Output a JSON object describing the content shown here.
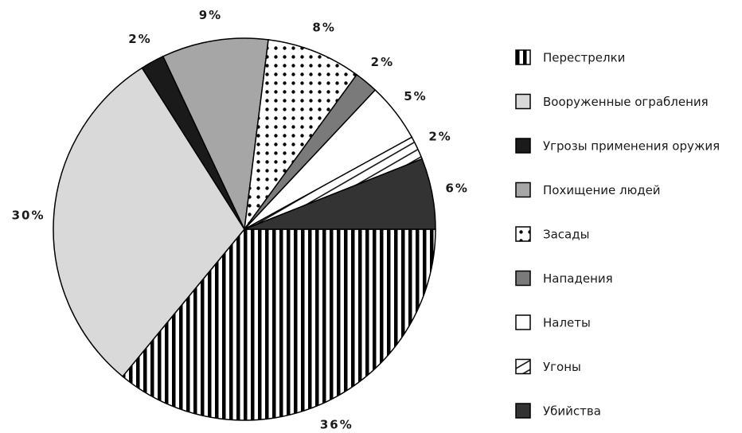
{
  "chart_data": {
    "type": "pie",
    "labels": [
      "Перестрелки",
      "Вооруженные ограбления",
      "Угрозы применения оружия",
      "Похищение людей",
      "Засады",
      "Нападения",
      "Налеты",
      "Угоны",
      "Убийства"
    ],
    "values": [
      36,
      30,
      2,
      9,
      8,
      2,
      5,
      2,
      6
    ],
    "value_labels": [
      "36%",
      "30%",
      "2%",
      "9%",
      "8%",
      "2%",
      "5%",
      "2%",
      "6%"
    ],
    "colors": [
      "#ffffff",
      "#d9d9d9",
      "#1a1a1a",
      "#a6a6a6",
      "#ffffff",
      "#7a7a7a",
      "#ffffff",
      "#ffffff",
      "#333333"
    ],
    "patterns": [
      "vertical-stripes",
      null,
      null,
      null,
      "dots",
      null,
      null,
      "diagonal-hatch",
      null
    ],
    "legend": "right"
  }
}
